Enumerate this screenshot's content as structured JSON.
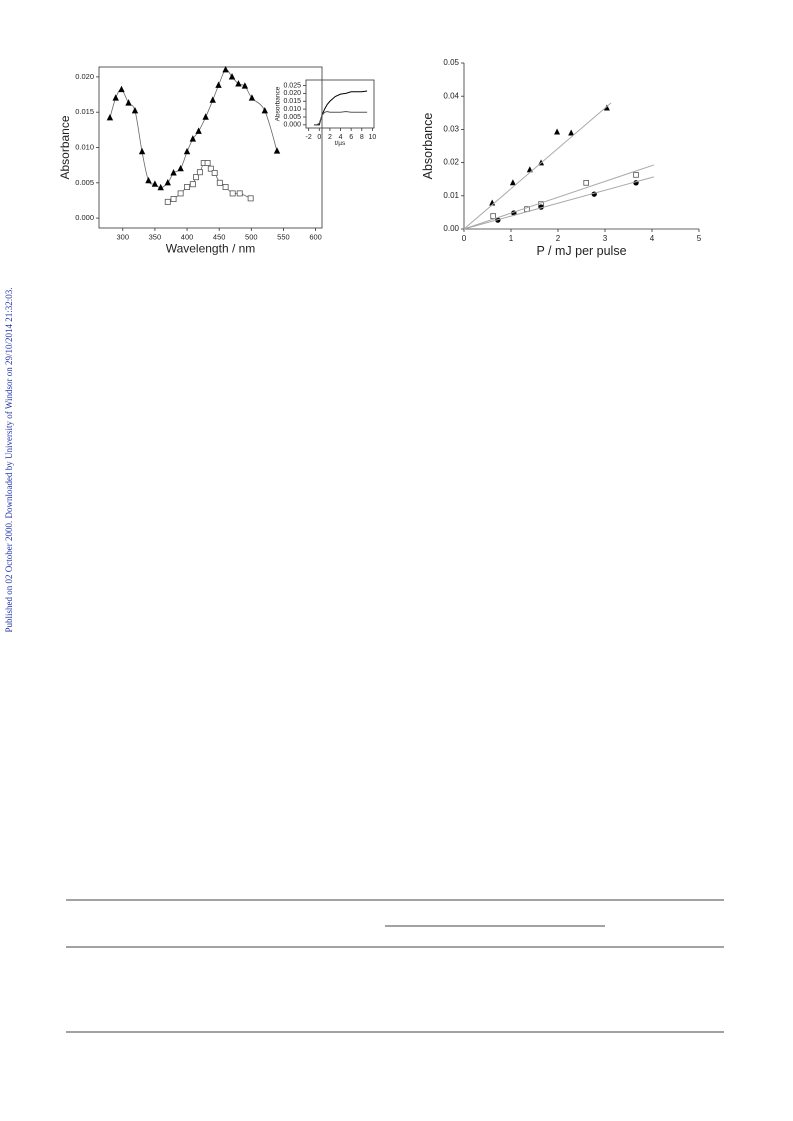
{
  "sidebar": "Published on 02 October 2000. Downloaded by University of Windsor on 29/10/2014 21:32:03.",
  "chart_data": [
    {
      "type": "scatter",
      "xlabel": "Wavelength / nm",
      "ylabel": "Absorbance",
      "xlim": [
        263,
        610
      ],
      "ylim": [
        -0.0014,
        0.0214
      ],
      "xticks": [
        300,
        350,
        400,
        450,
        500,
        550,
        600
      ],
      "yticks": [
        {
          "value": 0,
          "label": "0.000"
        },
        {
          "value": 0.005,
          "label": "0.005"
        },
        {
          "value": 0.01,
          "label": "0.010"
        },
        {
          "value": 0.015,
          "label": "0.015"
        },
        {
          "value": 0.02,
          "label": "0.020"
        }
      ],
      "frame": "box",
      "series": [
        {
          "marker": "triangle",
          "color": "#000000",
          "smooth": true,
          "x": [
            280,
            289,
            298,
            309,
            319,
            330,
            340,
            350,
            359,
            370,
            379,
            390,
            400,
            409,
            418,
            429,
            440,
            449,
            460,
            470,
            480,
            490,
            501,
            521,
            540
          ],
          "values": [
            0.0142,
            0.017,
            0.0182,
            0.0163,
            0.0152,
            0.0094,
            0.0053,
            0.0048,
            0.0043,
            0.005,
            0.0064,
            0.007,
            0.0094,
            0.0112,
            0.0123,
            0.0143,
            0.0167,
            0.0188,
            0.021,
            0.02,
            0.019,
            0.0187,
            0.017,
            0.0152,
            0.0095
          ]
        },
        {
          "marker": "square",
          "color": "#555555",
          "smooth": true,
          "x": [
            370,
            379,
            390,
            400,
            409,
            414,
            420,
            426,
            432,
            437,
            443,
            451,
            460,
            471,
            482,
            499
          ],
          "values": [
            0.0023,
            0.0027,
            0.0035,
            0.0044,
            0.0048,
            0.0058,
            0.0065,
            0.0078,
            0.0078,
            0.007,
            0.0064,
            0.005,
            0.0044,
            0.0035,
            0.0035,
            0.0028
          ]
        }
      ]
    },
    {
      "type": "line",
      "xlabel": "t/µs",
      "ylabel": "Absorbance",
      "xlim": [
        -2.5,
        10.3
      ],
      "ylim": [
        -0.002,
        0.0285
      ],
      "xticks": [
        -2,
        0,
        2,
        4,
        6,
        8,
        10
      ],
      "yticks": [
        {
          "value": 0,
          "label": "0.000"
        },
        {
          "value": 0.005,
          "label": "0.005"
        },
        {
          "value": 0.01,
          "label": "0.010"
        },
        {
          "value": 0.015,
          "label": "0.015"
        },
        {
          "value": 0.02,
          "label": "0.020"
        },
        {
          "value": 0.025,
          "label": "0.025"
        }
      ],
      "frame": "box",
      "series": [
        {
          "color": "#000000",
          "x": [
            -1,
            -0.5,
            0,
            0.5,
            1,
            1.5,
            2,
            3,
            4,
            5,
            6,
            7,
            8,
            9
          ],
          "values": [
            0,
            0,
            0,
            0.006,
            0.01,
            0.013,
            0.015,
            0.018,
            0.0195,
            0.02,
            0.021,
            0.021,
            0.021,
            0.0215
          ]
        },
        {
          "color": "#555555",
          "x": [
            -1,
            -0.5,
            0,
            0.5,
            1,
            1.5,
            2,
            3,
            4,
            5,
            6,
            7,
            8,
            9
          ],
          "values": [
            0,
            0,
            0.001,
            0.006,
            0.008,
            0.0085,
            0.008,
            0.008,
            0.008,
            0.0085,
            0.008,
            0.008,
            0.008,
            0.008
          ]
        }
      ]
    },
    {
      "type": "scatter",
      "xlabel": "P / mJ per pulse",
      "ylabel": "Absorbance",
      "xlim": [
        0,
        5
      ],
      "ylim": [
        0,
        0.05
      ],
      "xticks": [
        0,
        1,
        2,
        3,
        4,
        5
      ],
      "yticks": [
        {
          "value": 0,
          "label": "0.00"
        },
        {
          "value": 0.01,
          "label": "0.01"
        },
        {
          "value": 0.02,
          "label": "0.02"
        },
        {
          "value": 0.03,
          "label": "0.03"
        },
        {
          "value": 0.04,
          "label": "0.04"
        },
        {
          "value": 0.05,
          "label": "0.05"
        }
      ],
      "frame": "axes",
      "series": [
        {
          "marker": "triangle",
          "color": "#000000",
          "x": [
            0.6,
            1.04,
            1.4,
            1.64,
            1.98,
            2.28,
            3.04
          ],
          "values": [
            0.0078,
            0.0139,
            0.0178,
            0.0199,
            0.0292,
            0.0289,
            0.0364
          ]
        },
        {
          "marker": "square",
          "color": "#555555",
          "x": [
            0.62,
            1.34,
            1.64,
            2.6,
            3.66
          ],
          "values": [
            0.0039,
            0.006,
            0.0075,
            0.0139,
            0.0163
          ]
        },
        {
          "marker": "circle",
          "color": "#000000",
          "x": [
            0.72,
            1.06,
            1.64,
            2.77,
            3.66
          ],
          "values": [
            0.0027,
            0.0048,
            0.0066,
            0.0105,
            0.0139
          ]
        },
        {
          "color": "#aaaaaa",
          "x": [
            0,
            3.13
          ],
          "values": [
            0,
            0.038
          ]
        },
        {
          "color": "#aaaaaa",
          "x": [
            0,
            4.04
          ],
          "values": [
            0,
            0.0193
          ]
        },
        {
          "color": "#aaaaaa",
          "x": [
            0,
            4.04
          ],
          "values": [
            0,
            0.0157
          ]
        }
      ]
    }
  ]
}
